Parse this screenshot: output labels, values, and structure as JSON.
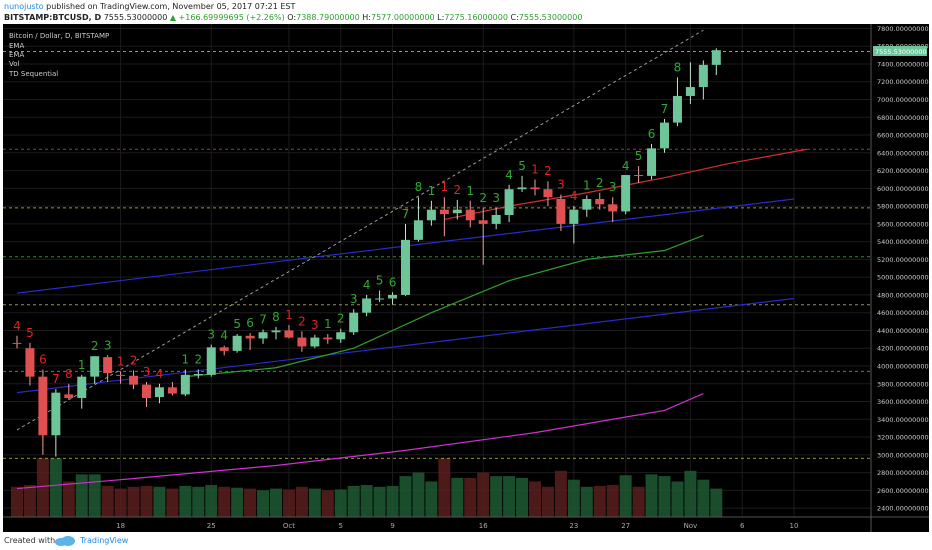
{
  "header": {
    "author": "nunojusto",
    "published": "published on TradingView.com, November 05, 2017 07:21 EST",
    "symbol": "BITSTAMP:BTCUSD, D",
    "last": "7555.53000000",
    "change": "▲ +166.69999695 (+2.26%)",
    "o_label": "O:",
    "o_val": "7388.79000000",
    "h_label": "H:",
    "h_val": "7577.00000000",
    "l_label": "L:",
    "l_val": "7275.16000000",
    "c_label": "C:",
    "c_val": "7555.53000000"
  },
  "legend": {
    "title": "Bitcoin / Dollar, D, BITSTAMP",
    "items": [
      "EMA",
      "EMA",
      "Vol",
      "TD Sequential"
    ]
  },
  "price_tag": "7555.53000000",
  "footer": {
    "created": "Created with",
    "brand": "TradingView"
  },
  "colors": {
    "up": "#6fc59a",
    "down": "#e05050",
    "td_up": "#2ea82e",
    "td_down": "#dd2222",
    "ema_red": "#d03030",
    "ema_green": "#2ea02e",
    "blue_line": "#2a2ac8",
    "magenta_line": "#cc33cc"
  },
  "chart_data": {
    "type": "candlestick",
    "ylim": [
      2300,
      7850
    ],
    "y_ticks": [
      2400,
      2600,
      2800,
      3000,
      3200,
      3400,
      3600,
      3800,
      4000,
      4200,
      4400,
      4600,
      4800,
      5000,
      5200,
      5400,
      5600,
      5800,
      6000,
      6200,
      6400,
      6600,
      6800,
      7000,
      7200,
      7400,
      7600,
      7800
    ],
    "y_tick_labels": [
      "2400.00000000",
      "2600.00000000",
      "2800.00000000",
      "3000.00000000",
      "3200.00000000",
      "3400.00000000",
      "3600.00000000",
      "3800.00000000",
      "4000.00000000",
      "4200.00000000",
      "4400.00000000",
      "4600.00000000",
      "4800.00000000",
      "5000.00000000",
      "5200.00000000",
      "5400.00000000",
      "5600.00000000",
      "5800.00000000",
      "6000.00000000",
      "6200.00000000",
      "6400.00000000",
      "6600.00000000",
      "6800.00000000",
      "7000.00000000",
      "7200.00000000",
      "7400.00000000",
      "7600.00000000",
      "7800.00000000"
    ],
    "x_ticks": [
      {
        "i": 8,
        "label": "18"
      },
      {
        "i": 15,
        "label": "25"
      },
      {
        "i": 21,
        "label": "Oct"
      },
      {
        "i": 25,
        "label": "5"
      },
      {
        "i": 29,
        "label": "9"
      },
      {
        "i": 36,
        "label": "16"
      },
      {
        "i": 43,
        "label": "23"
      },
      {
        "i": 47,
        "label": "27"
      },
      {
        "i": 52,
        "label": "Nov"
      },
      {
        "i": 56,
        "label": "6"
      },
      {
        "i": 60,
        "label": "10"
      }
    ],
    "candles": [
      {
        "o": 4260,
        "h": 4340,
        "l": 4200,
        "c": 4250,
        "v": 2640
      },
      {
        "o": 4200,
        "h": 4260,
        "l": 3780,
        "c": 3880,
        "v": 2660
      },
      {
        "o": 3880,
        "h": 3960,
        "l": 3000,
        "c": 3220,
        "v": 2960
      },
      {
        "o": 3220,
        "h": 3740,
        "l": 2980,
        "c": 3700,
        "v": 2960
      },
      {
        "o": 3680,
        "h": 3800,
        "l": 3620,
        "c": 3640,
        "v": 2700
      },
      {
        "o": 3640,
        "h": 3900,
        "l": 3520,
        "c": 3880,
        "v": 2780
      },
      {
        "o": 3880,
        "h": 4110,
        "l": 3800,
        "c": 4110,
        "v": 2780
      },
      {
        "o": 4100,
        "h": 4120,
        "l": 3820,
        "c": 3920,
        "v": 2650
      },
      {
        "o": 3900,
        "h": 3940,
        "l": 3800,
        "c": 3890,
        "v": 2620
      },
      {
        "o": 3890,
        "h": 3950,
        "l": 3740,
        "c": 3790,
        "v": 2640
      },
      {
        "o": 3790,
        "h": 3820,
        "l": 3540,
        "c": 3640,
        "v": 2650
      },
      {
        "o": 3650,
        "h": 3800,
        "l": 3580,
        "c": 3760,
        "v": 2640
      },
      {
        "o": 3760,
        "h": 3820,
        "l": 3670,
        "c": 3690,
        "v": 2620
      },
      {
        "o": 3680,
        "h": 3960,
        "l": 3660,
        "c": 3900,
        "v": 2650
      },
      {
        "o": 3900,
        "h": 3960,
        "l": 3860,
        "c": 3910,
        "v": 2640
      },
      {
        "o": 3900,
        "h": 4240,
        "l": 3880,
        "c": 4210,
        "v": 2660
      },
      {
        "o": 4210,
        "h": 4230,
        "l": 4120,
        "c": 4170,
        "v": 2640
      },
      {
        "o": 4170,
        "h": 4360,
        "l": 4150,
        "c": 4340,
        "v": 2630
      },
      {
        "o": 4340,
        "h": 4370,
        "l": 4180,
        "c": 4310,
        "v": 2620
      },
      {
        "o": 4310,
        "h": 4410,
        "l": 4250,
        "c": 4380,
        "v": 2600
      },
      {
        "o": 4380,
        "h": 4440,
        "l": 4300,
        "c": 4400,
        "v": 2620
      },
      {
        "o": 4400,
        "h": 4460,
        "l": 4310,
        "c": 4320,
        "v": 2610
      },
      {
        "o": 4320,
        "h": 4390,
        "l": 4160,
        "c": 4220,
        "v": 2640
      },
      {
        "o": 4220,
        "h": 4350,
        "l": 4200,
        "c": 4320,
        "v": 2620
      },
      {
        "o": 4320,
        "h": 4360,
        "l": 4250,
        "c": 4300,
        "v": 2600
      },
      {
        "o": 4300,
        "h": 4420,
        "l": 4260,
        "c": 4380,
        "v": 2610
      },
      {
        "o": 4380,
        "h": 4640,
        "l": 4350,
        "c": 4600,
        "v": 2650
      },
      {
        "o": 4600,
        "h": 4800,
        "l": 4560,
        "c": 4760,
        "v": 2660
      },
      {
        "o": 4760,
        "h": 4850,
        "l": 4720,
        "c": 4760,
        "v": 2640
      },
      {
        "o": 4760,
        "h": 4830,
        "l": 4690,
        "c": 4800,
        "v": 2650
      },
      {
        "o": 4800,
        "h": 5600,
        "l": 4790,
        "c": 5420,
        "v": 2760
      },
      {
        "o": 5420,
        "h": 5900,
        "l": 5400,
        "c": 5640,
        "v": 2800
      },
      {
        "o": 5640,
        "h": 5860,
        "l": 5580,
        "c": 5760,
        "v": 2700
      },
      {
        "o": 5760,
        "h": 5900,
        "l": 5460,
        "c": 5710,
        "v": 2960
      },
      {
        "o": 5720,
        "h": 5870,
        "l": 5650,
        "c": 5760,
        "v": 2740
      },
      {
        "o": 5760,
        "h": 5860,
        "l": 5560,
        "c": 5640,
        "v": 2740
      },
      {
        "o": 5640,
        "h": 5780,
        "l": 5140,
        "c": 5600,
        "v": 2800
      },
      {
        "o": 5600,
        "h": 5780,
        "l": 5540,
        "c": 5700,
        "v": 2760
      },
      {
        "o": 5700,
        "h": 6040,
        "l": 5620,
        "c": 5990,
        "v": 2760
      },
      {
        "o": 5990,
        "h": 6140,
        "l": 5960,
        "c": 6010,
        "v": 2740
      },
      {
        "o": 6010,
        "h": 6100,
        "l": 5920,
        "c": 5990,
        "v": 2700
      },
      {
        "o": 5990,
        "h": 6080,
        "l": 5800,
        "c": 5900,
        "v": 2640
      },
      {
        "o": 5880,
        "h": 5930,
        "l": 5520,
        "c": 5600,
        "v": 2820
      },
      {
        "o": 5600,
        "h": 5800,
        "l": 5380,
        "c": 5760,
        "v": 2720
      },
      {
        "o": 5760,
        "h": 5920,
        "l": 5680,
        "c": 5880,
        "v": 2640
      },
      {
        "o": 5880,
        "h": 5950,
        "l": 5760,
        "c": 5820,
        "v": 2650
      },
      {
        "o": 5820,
        "h": 5900,
        "l": 5620,
        "c": 5740,
        "v": 2660
      },
      {
        "o": 5740,
        "h": 6140,
        "l": 5710,
        "c": 6150,
        "v": 2770
      },
      {
        "o": 6150,
        "h": 6250,
        "l": 6060,
        "c": 6140,
        "v": 2640
      },
      {
        "o": 6140,
        "h": 6500,
        "l": 6100,
        "c": 6450,
        "v": 2780
      },
      {
        "o": 6450,
        "h": 6780,
        "l": 6400,
        "c": 6740,
        "v": 2760
      },
      {
        "o": 6740,
        "h": 7250,
        "l": 6700,
        "c": 7040,
        "v": 2700
      },
      {
        "o": 7040,
        "h": 7420,
        "l": 6950,
        "c": 7140,
        "v": 2820
      },
      {
        "o": 7140,
        "h": 7440,
        "l": 7000,
        "c": 7390,
        "v": 2720
      },
      {
        "o": 7390,
        "h": 7577,
        "l": 7275,
        "c": 7555,
        "v": 2620
      }
    ],
    "td_labels": [
      {
        "i": 0,
        "t": "4",
        "dir": "down"
      },
      {
        "i": 1,
        "t": "5",
        "dir": "down"
      },
      {
        "i": 2,
        "t": "6",
        "dir": "down"
      },
      {
        "i": 3,
        "t": "7",
        "dir": "down"
      },
      {
        "i": 4,
        "t": "8",
        "dir": "down"
      },
      {
        "i": 5,
        "t": "1",
        "dir": "up"
      },
      {
        "i": 6,
        "t": "2",
        "dir": "up"
      },
      {
        "i": 7,
        "t": "3",
        "dir": "up"
      },
      {
        "i": 8,
        "t": "1",
        "dir": "down"
      },
      {
        "i": 9,
        "t": "2",
        "dir": "down"
      },
      {
        "i": 10,
        "t": "3",
        "dir": "down"
      },
      {
        "i": 11,
        "t": "4",
        "dir": "down"
      },
      {
        "i": 13,
        "t": "1",
        "dir": "up"
      },
      {
        "i": 14,
        "t": "2",
        "dir": "up"
      },
      {
        "i": 15,
        "t": "3",
        "dir": "up"
      },
      {
        "i": 16,
        "t": "4",
        "dir": "up"
      },
      {
        "i": 17,
        "t": "5",
        "dir": "up"
      },
      {
        "i": 18,
        "t": "6",
        "dir": "up"
      },
      {
        "i": 19,
        "t": "7",
        "dir": "up"
      },
      {
        "i": 20,
        "t": "8",
        "dir": "up"
      },
      {
        "i": 21,
        "t": "1",
        "dir": "down"
      },
      {
        "i": 22,
        "t": "2",
        "dir": "down"
      },
      {
        "i": 23,
        "t": "3",
        "dir": "down"
      },
      {
        "i": 24,
        "t": "1",
        "dir": "up"
      },
      {
        "i": 25,
        "t": "2",
        "dir": "up"
      },
      {
        "i": 26,
        "t": "3",
        "dir": "up"
      },
      {
        "i": 27,
        "t": "4",
        "dir": "up"
      },
      {
        "i": 28,
        "t": "5",
        "dir": "up"
      },
      {
        "i": 29,
        "t": "6",
        "dir": "up"
      },
      {
        "i": 30,
        "t": "7",
        "dir": "up"
      },
      {
        "i": 31,
        "t": "8",
        "dir": "up"
      },
      {
        "i": 32,
        "t": "1",
        "dir": "up"
      },
      {
        "i": 33,
        "t": "1",
        "dir": "down"
      },
      {
        "i": 34,
        "t": "2",
        "dir": "down"
      },
      {
        "i": 35,
        "t": "1",
        "dir": "up"
      },
      {
        "i": 36,
        "t": "2",
        "dir": "up"
      },
      {
        "i": 37,
        "t": "3",
        "dir": "up"
      },
      {
        "i": 38,
        "t": "4",
        "dir": "up"
      },
      {
        "i": 39,
        "t": "5",
        "dir": "up"
      },
      {
        "i": 40,
        "t": "1",
        "dir": "down"
      },
      {
        "i": 41,
        "t": "2",
        "dir": "down"
      },
      {
        "i": 42,
        "t": "3",
        "dir": "down"
      },
      {
        "i": 43,
        "t": "4",
        "dir": "down"
      },
      {
        "i": 44,
        "t": "1",
        "dir": "up"
      },
      {
        "i": 45,
        "t": "2",
        "dir": "up"
      },
      {
        "i": 46,
        "t": "3",
        "dir": "up"
      },
      {
        "i": 47,
        "t": "4",
        "dir": "up"
      },
      {
        "i": 48,
        "t": "5",
        "dir": "up"
      },
      {
        "i": 49,
        "t": "6",
        "dir": "up"
      },
      {
        "i": 50,
        "t": "7",
        "dir": "up"
      },
      {
        "i": 51,
        "t": "8",
        "dir": "up"
      }
    ],
    "ema_red": [
      [
        33,
        5650
      ],
      [
        38,
        5800
      ],
      [
        44,
        5950
      ],
      [
        50,
        6120
      ],
      [
        55,
        6280
      ],
      [
        61,
        6440
      ]
    ],
    "ema_green": [
      [
        13,
        3880
      ],
      [
        20,
        3980
      ],
      [
        26,
        4200
      ],
      [
        32,
        4600
      ],
      [
        38,
        4960
      ],
      [
        44,
        5200
      ],
      [
        50,
        5300
      ],
      [
        53,
        5470
      ]
    ],
    "ema_magenta": [
      [
        0,
        2620
      ],
      [
        8,
        2720
      ],
      [
        20,
        2880
      ],
      [
        30,
        3050
      ],
      [
        40,
        3250
      ],
      [
        50,
        3500
      ],
      [
        53,
        3690
      ]
    ],
    "blue_line_upper": [
      [
        0,
        4820
      ],
      [
        60,
        5880
      ]
    ],
    "blue_line_lower": [
      [
        0,
        3700
      ],
      [
        60,
        4760
      ]
    ],
    "dashed_trend": [
      [
        0,
        3280
      ],
      [
        53,
        7780
      ]
    ],
    "horizontal_levels": [
      {
        "y": 7540,
        "color": "#bbbbbb"
      },
      {
        "y": 6440,
        "color": "#cc4444"
      },
      {
        "y": 5780,
        "color": "#bbbb44"
      },
      {
        "y": 5230,
        "color": "#44aa44"
      },
      {
        "y": 4690,
        "color": "#bbbb44"
      },
      {
        "y": 3940,
        "color": "#44aaaa"
      },
      {
        "y": 2960,
        "color": "#bbbb44"
      }
    ]
  }
}
